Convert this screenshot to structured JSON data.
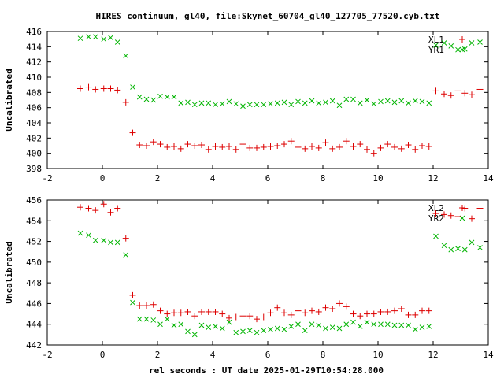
{
  "title": "HIRES continuum, gl40, file:Skynet_60704_gl40_127705_77520.cyb.txt",
  "xlabel": "rel seconds : UT date 2025-01-29T10:54:28.000",
  "colors": {
    "red": "#dd0000",
    "green": "#00b400",
    "frame": "#000000"
  },
  "chart_data": [
    {
      "type": "scatter",
      "ylabel": "Uncalibrated",
      "xlim": [
        -2,
        14
      ],
      "ylim": [
        398,
        416
      ],
      "xticks": [
        "-2",
        "0",
        "2",
        "4",
        "6",
        "8",
        "10",
        "12",
        "14"
      ],
      "yticks": [
        "398",
        "400",
        "402",
        "404",
        "406",
        "408",
        "410",
        "412",
        "414",
        "416"
      ],
      "legend": [
        "XL1",
        "YR1"
      ],
      "legend_position": "top-right",
      "series": [
        {
          "name": "XL1",
          "marker": "+",
          "color": "#dd0000",
          "x": [
            -0.8,
            -0.5,
            -0.25,
            0.05,
            0.3,
            0.55,
            0.85,
            1.1,
            1.35,
            1.6,
            1.85,
            2.1,
            2.35,
            2.6,
            2.85,
            3.1,
            3.35,
            3.6,
            3.85,
            4.1,
            4.35,
            4.6,
            4.85,
            5.1,
            5.35,
            5.6,
            5.85,
            6.1,
            6.35,
            6.6,
            6.85,
            7.1,
            7.35,
            7.6,
            7.85,
            8.1,
            8.35,
            8.6,
            8.85,
            9.1,
            9.35,
            9.6,
            9.85,
            10.1,
            10.35,
            10.6,
            10.85,
            11.1,
            11.35,
            11.6,
            11.85,
            12.1,
            12.4,
            12.65,
            12.9,
            13.15,
            13.4,
            13.7
          ],
          "y": [
            408.5,
            408.7,
            408.4,
            408.5,
            408.5,
            408.3,
            406.7,
            402.7,
            401.1,
            401.0,
            401.5,
            401.2,
            400.8,
            400.9,
            400.6,
            401.2,
            401.0,
            401.1,
            400.5,
            400.9,
            400.8,
            400.9,
            400.5,
            401.2,
            400.7,
            400.7,
            400.8,
            400.9,
            401.0,
            401.2,
            401.6,
            400.8,
            400.6,
            400.9,
            400.7,
            401.4,
            400.6,
            400.8,
            401.6,
            400.9,
            401.2,
            400.5,
            400.0,
            400.7,
            401.2,
            400.8,
            400.6,
            401.1,
            400.5,
            401.0,
            400.9,
            408.2,
            407.8,
            407.6,
            408.2,
            407.9,
            407.7,
            408.4
          ]
        },
        {
          "name": "YR1",
          "marker": "x",
          "color": "#00b400",
          "x": [
            -0.8,
            -0.5,
            -0.25,
            0.05,
            0.3,
            0.55,
            0.85,
            1.1,
            1.35,
            1.6,
            1.85,
            2.1,
            2.35,
            2.6,
            2.85,
            3.1,
            3.35,
            3.6,
            3.85,
            4.1,
            4.35,
            4.6,
            4.85,
            5.1,
            5.35,
            5.6,
            5.85,
            6.1,
            6.35,
            6.6,
            6.85,
            7.1,
            7.35,
            7.6,
            7.85,
            8.1,
            8.35,
            8.6,
            8.85,
            9.1,
            9.35,
            9.6,
            9.85,
            10.1,
            10.35,
            10.6,
            10.85,
            11.1,
            11.35,
            11.6,
            11.85,
            12.1,
            12.4,
            12.65,
            12.9,
            13.15,
            13.4,
            13.7
          ],
          "y": [
            415.1,
            415.3,
            415.3,
            415.0,
            415.2,
            414.6,
            412.8,
            408.7,
            407.4,
            407.1,
            407.0,
            407.5,
            407.4,
            407.4,
            406.6,
            406.7,
            406.4,
            406.6,
            406.6,
            406.4,
            406.5,
            406.8,
            406.5,
            406.2,
            406.4,
            406.4,
            406.4,
            406.5,
            406.6,
            406.7,
            406.4,
            406.8,
            406.6,
            406.9,
            406.6,
            406.7,
            406.9,
            406.3,
            407.1,
            407.1,
            406.6,
            407.0,
            406.5,
            406.8,
            406.9,
            406.7,
            406.9,
            406.6,
            406.9,
            406.8,
            406.6,
            414.2,
            414.5,
            414.1,
            413.6,
            413.7,
            414.5,
            414.6
          ]
        }
      ]
    },
    {
      "type": "scatter",
      "ylabel": "Uncalibrated",
      "xlim": [
        -2,
        14
      ],
      "ylim": [
        442,
        456
      ],
      "xticks": [
        "-2",
        "0",
        "2",
        "4",
        "6",
        "8",
        "10",
        "12",
        "14"
      ],
      "yticks": [
        "442",
        "444",
        "446",
        "448",
        "450",
        "452",
        "454",
        "456"
      ],
      "legend": [
        "XL2",
        "YR2"
      ],
      "legend_position": "top-right",
      "series": [
        {
          "name": "XL2",
          "marker": "+",
          "color": "#dd0000",
          "x": [
            -0.8,
            -0.5,
            -0.25,
            0.05,
            0.3,
            0.55,
            0.85,
            1.1,
            1.35,
            1.6,
            1.85,
            2.1,
            2.35,
            2.6,
            2.85,
            3.1,
            3.35,
            3.6,
            3.85,
            4.1,
            4.35,
            4.6,
            4.85,
            5.1,
            5.35,
            5.6,
            5.85,
            6.1,
            6.35,
            6.6,
            6.85,
            7.1,
            7.35,
            7.6,
            7.85,
            8.1,
            8.35,
            8.6,
            8.85,
            9.1,
            9.35,
            9.6,
            9.85,
            10.1,
            10.35,
            10.6,
            10.85,
            11.1,
            11.35,
            11.6,
            11.85,
            12.1,
            12.4,
            12.65,
            12.9,
            13.15,
            13.4,
            13.7
          ],
          "y": [
            455.3,
            455.2,
            455.0,
            455.6,
            454.8,
            455.2,
            452.3,
            446.8,
            445.8,
            445.8,
            445.9,
            445.3,
            445.0,
            445.1,
            445.1,
            445.2,
            444.8,
            445.2,
            445.2,
            445.2,
            445.0,
            444.6,
            444.7,
            444.8,
            444.8,
            444.5,
            444.7,
            445.1,
            445.6,
            445.1,
            444.9,
            445.3,
            445.1,
            445.3,
            445.2,
            445.6,
            445.5,
            446.0,
            445.7,
            445.0,
            444.8,
            445.0,
            445.0,
            445.2,
            445.2,
            445.3,
            445.5,
            444.9,
            444.9,
            445.3,
            445.3,
            454.7,
            454.6,
            454.5,
            454.4,
            455.2,
            454.2,
            455.2
          ]
        },
        {
          "name": "YR2",
          "marker": "x",
          "color": "#00b400",
          "x": [
            -0.8,
            -0.5,
            -0.25,
            0.05,
            0.3,
            0.55,
            0.85,
            1.1,
            1.35,
            1.6,
            1.85,
            2.1,
            2.35,
            2.6,
            2.85,
            3.1,
            3.35,
            3.6,
            3.85,
            4.1,
            4.35,
            4.6,
            4.85,
            5.1,
            5.35,
            5.6,
            5.85,
            6.1,
            6.35,
            6.6,
            6.85,
            7.1,
            7.35,
            7.6,
            7.85,
            8.1,
            8.35,
            8.6,
            8.85,
            9.1,
            9.35,
            9.6,
            9.85,
            10.1,
            10.35,
            10.6,
            10.85,
            11.1,
            11.35,
            11.6,
            11.85,
            12.1,
            12.4,
            12.65,
            12.9,
            13.15,
            13.4,
            13.7
          ],
          "y": [
            452.8,
            452.6,
            452.1,
            452.1,
            451.9,
            451.9,
            450.7,
            446.1,
            444.5,
            444.5,
            444.4,
            444.0,
            444.5,
            443.9,
            444.0,
            443.3,
            443.0,
            443.9,
            443.7,
            443.8,
            443.6,
            444.2,
            443.2,
            443.3,
            443.4,
            443.2,
            443.4,
            443.5,
            443.6,
            443.5,
            443.8,
            444.0,
            443.4,
            444.0,
            443.9,
            443.6,
            443.7,
            443.6,
            444.0,
            444.2,
            443.8,
            444.2,
            444.0,
            444.0,
            444.0,
            443.9,
            443.9,
            443.9,
            443.5,
            443.7,
            443.8,
            452.5,
            451.6,
            451.2,
            451.3,
            451.2,
            451.9,
            451.4
          ]
        }
      ]
    }
  ]
}
